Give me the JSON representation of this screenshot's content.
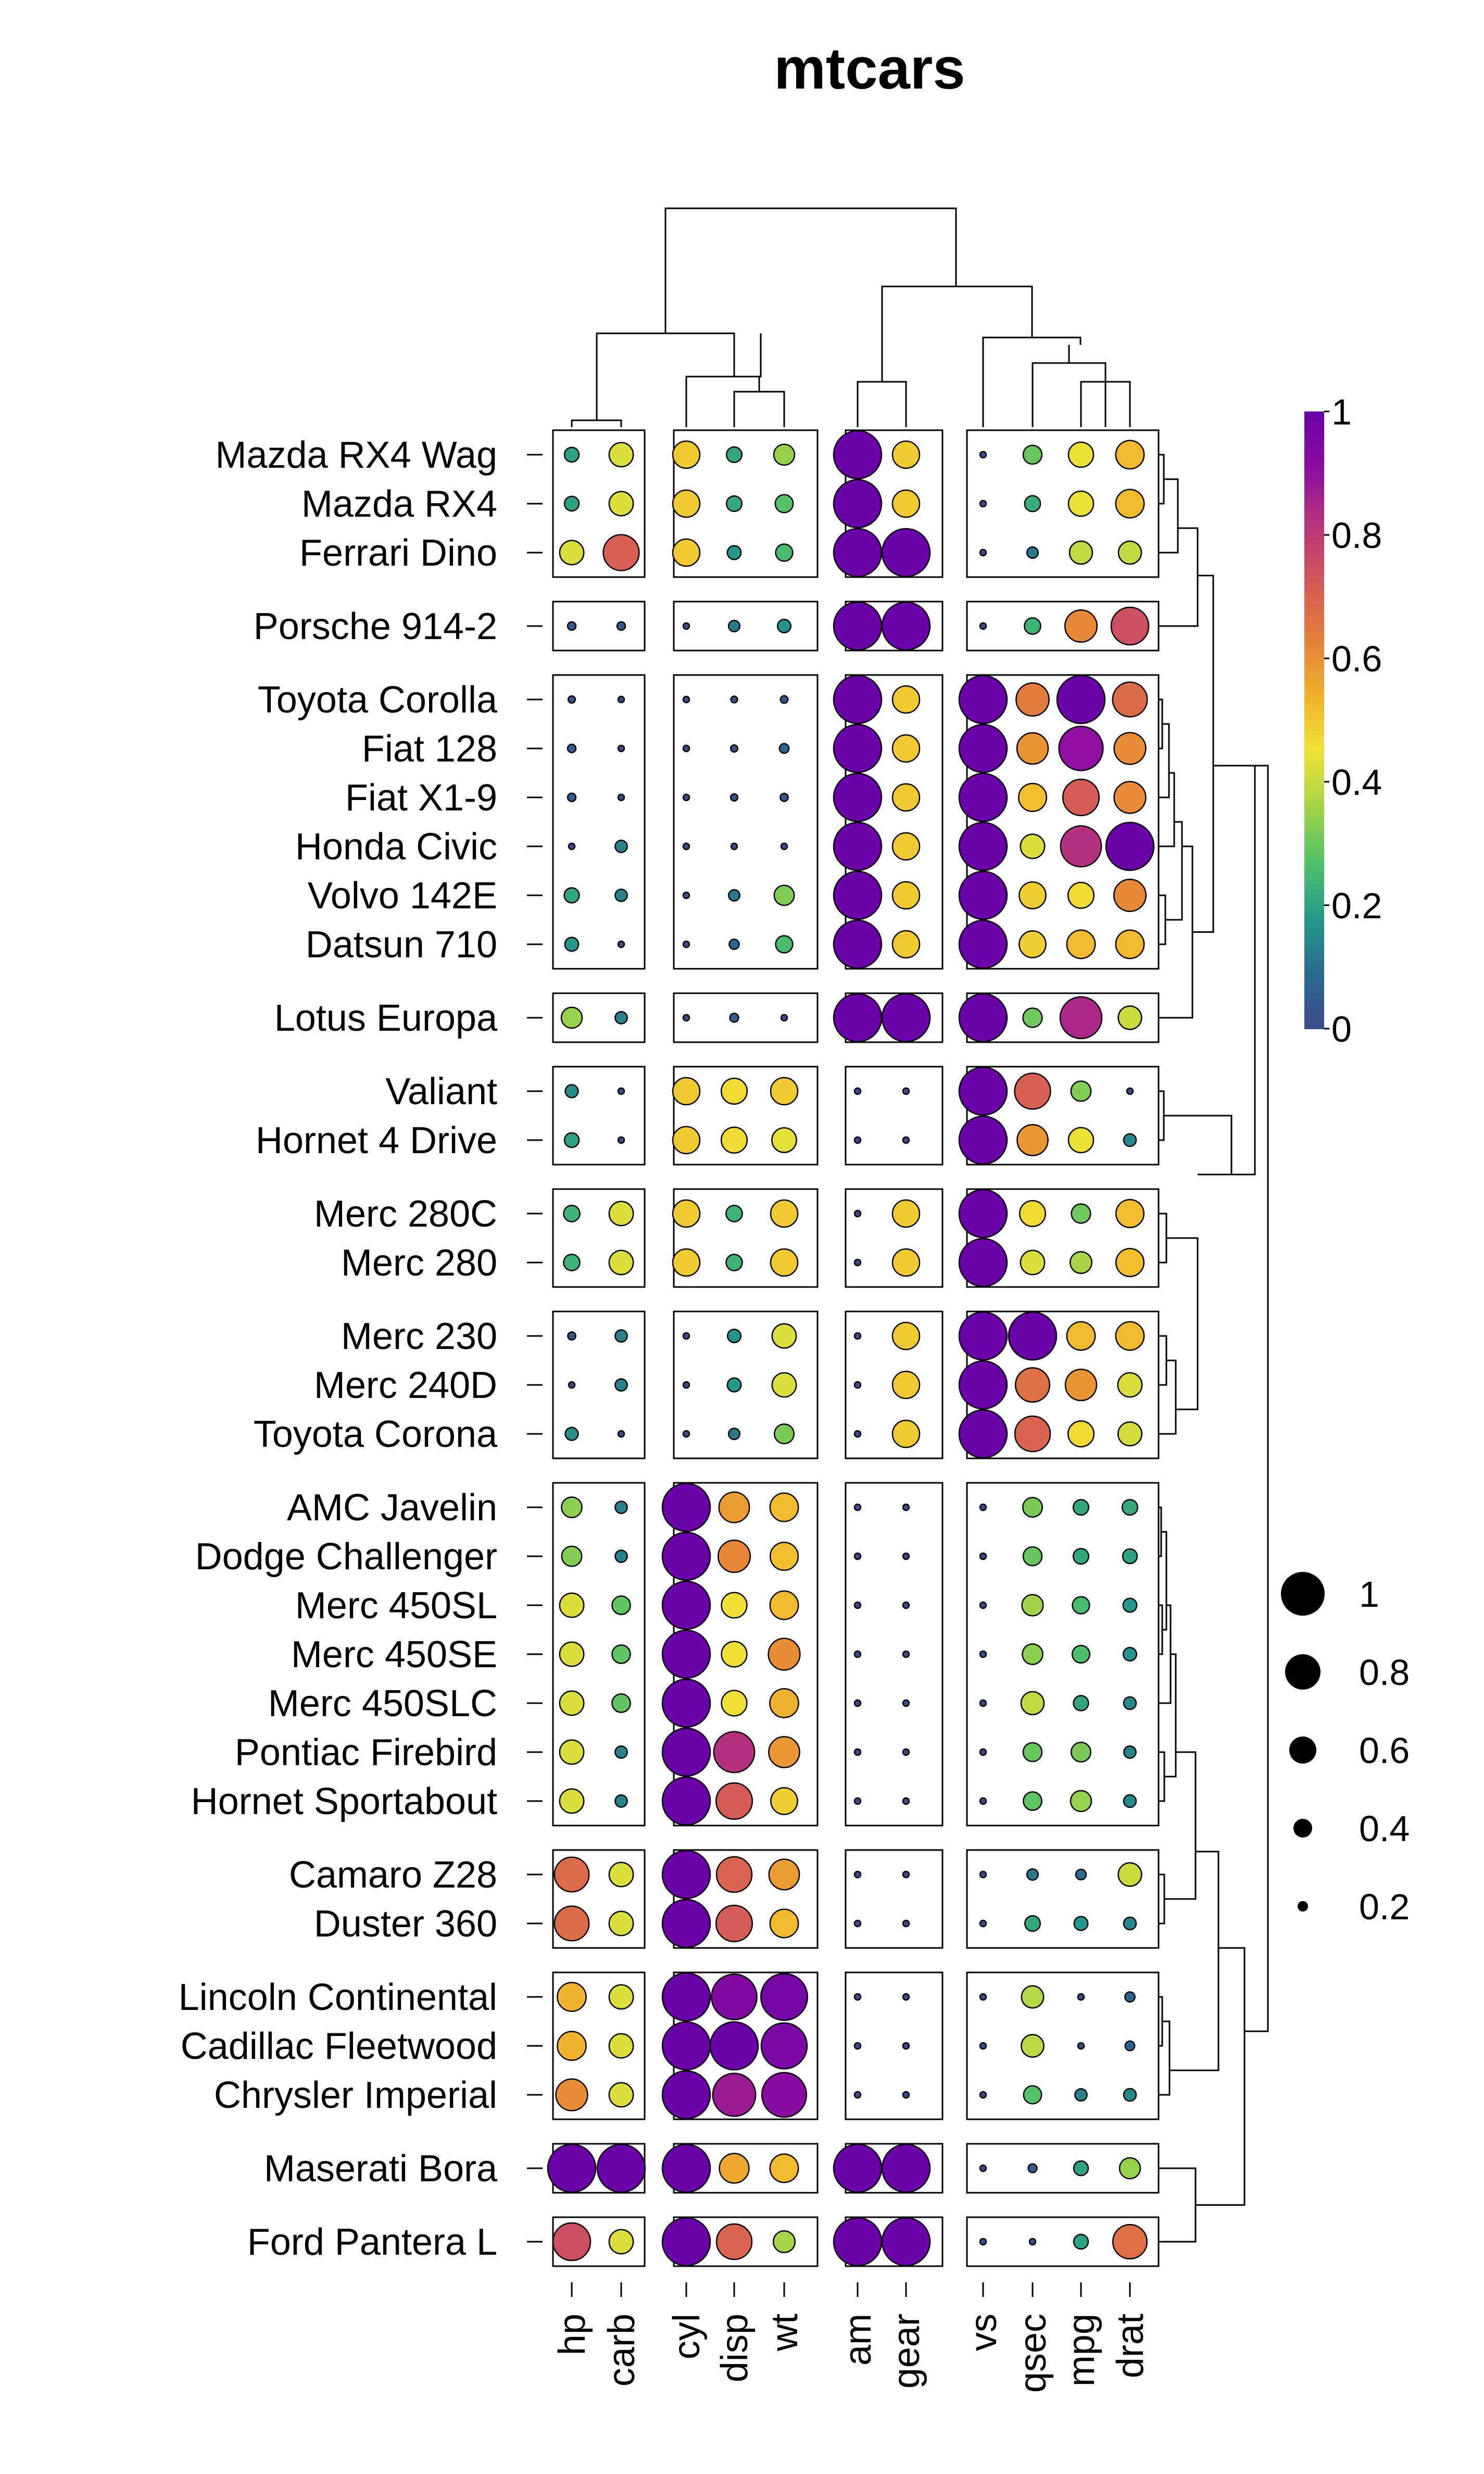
{
  "chart_data": {
    "type": "heatmap",
    "title": "mtcars",
    "columns": [
      "hp",
      "carb",
      "cyl",
      "disp",
      "wt",
      "am",
      "gear",
      "vs",
      "qsec",
      "mpg",
      "drat"
    ],
    "column_groups": [
      [
        0,
        1
      ],
      [
        2,
        3,
        4
      ],
      [
        5,
        6
      ],
      [
        7,
        8,
        9,
        10
      ]
    ],
    "rows": [
      "Mazda RX4 Wag",
      "Mazda RX4",
      "Ferrari Dino",
      "Porsche 914-2",
      "Toyota Corolla",
      "Fiat 128",
      "Fiat X1-9",
      "Honda Civic",
      "Volvo 142E",
      "Datsun 710",
      "Lotus Europa",
      "Valiant",
      "Hornet 4 Drive",
      "Merc 280C",
      "Merc 280",
      "Merc 230",
      "Merc 240D",
      "Toyota Corona",
      "AMC Javelin",
      "Dodge Challenger",
      "Merc 450SL",
      "Merc 450SE",
      "Merc 450SLC",
      "Pontiac Firebird",
      "Hornet Sportabout",
      "Camaro Z28",
      "Duster 360",
      "Lincoln Continental",
      "Cadillac Fleetwood",
      "Chrysler Imperial",
      "Maserati Bora",
      "Ford Pantera L"
    ],
    "row_groups": [
      [
        0,
        1,
        2
      ],
      [
        3
      ],
      [
        4,
        5,
        6,
        7,
        8,
        9
      ],
      [
        10
      ],
      [
        11,
        12
      ],
      [
        13,
        14
      ],
      [
        15,
        16,
        17
      ],
      [
        18,
        19,
        20,
        21,
        22,
        23,
        24
      ],
      [
        25,
        26
      ],
      [
        27,
        28,
        29
      ],
      [
        30
      ],
      [
        31
      ]
    ],
    "values": [
      [
        0.2,
        0.43,
        0.5,
        0.22,
        0.35,
        1.0,
        0.5,
        0.0,
        0.3,
        0.45,
        0.53
      ],
      [
        0.2,
        0.43,
        0.5,
        0.22,
        0.28,
        1.0,
        0.5,
        0.0,
        0.23,
        0.45,
        0.53
      ],
      [
        0.43,
        0.71,
        0.5,
        0.18,
        0.26,
        1.0,
        1.0,
        0.0,
        0.12,
        0.4,
        0.4
      ],
      [
        0.05,
        0.05,
        0.0,
        0.12,
        0.17,
        1.0,
        1.0,
        0.0,
        0.24,
        0.62,
        0.75
      ],
      [
        0.02,
        0.0,
        0.0,
        0.01,
        0.03,
        1.0,
        0.5,
        1.0,
        0.64,
        1.0,
        0.68
      ],
      [
        0.05,
        0.0,
        0.0,
        0.02,
        0.08,
        1.0,
        0.5,
        1.0,
        0.6,
        0.91,
        0.61
      ],
      [
        0.05,
        0.0,
        0.0,
        0.02,
        0.04,
        1.0,
        0.5,
        1.0,
        0.52,
        0.72,
        0.61
      ],
      [
        0.0,
        0.14,
        0.0,
        0.0,
        0.0,
        1.0,
        0.5,
        1.0,
        0.43,
        0.83,
        1.0
      ],
      [
        0.21,
        0.14,
        0.0,
        0.12,
        0.33,
        1.0,
        0.5,
        1.0,
        0.49,
        0.47,
        0.62
      ],
      [
        0.18,
        0.0,
        0.0,
        0.09,
        0.26,
        1.0,
        0.5,
        1.0,
        0.49,
        0.53,
        0.53
      ],
      [
        0.35,
        0.14,
        0.0,
        0.06,
        0.0,
        1.0,
        1.0,
        1.0,
        0.31,
        0.85,
        0.41
      ],
      [
        0.16,
        0.0,
        0.5,
        0.47,
        0.5,
        0.0,
        0.0,
        1.0,
        0.71,
        0.33,
        0.0
      ],
      [
        0.2,
        0.0,
        0.5,
        0.47,
        0.44,
        0.0,
        0.0,
        1.0,
        0.59,
        0.45,
        0.15
      ],
      [
        0.24,
        0.43,
        0.5,
        0.24,
        0.5,
        0.0,
        0.5,
        1.0,
        0.47,
        0.31,
        0.52
      ],
      [
        0.24,
        0.43,
        0.5,
        0.24,
        0.5,
        0.0,
        0.5,
        1.0,
        0.43,
        0.37,
        0.52
      ],
      [
        0.04,
        0.14,
        0.0,
        0.17,
        0.43,
        0.0,
        0.5,
        1.0,
        1.0,
        0.53,
        0.53
      ],
      [
        0.0,
        0.14,
        0.0,
        0.18,
        0.43,
        0.0,
        0.5,
        1.0,
        0.67,
        0.6,
        0.43
      ],
      [
        0.16,
        0.0,
        0.0,
        0.12,
        0.32,
        0.0,
        0.5,
        1.0,
        0.7,
        0.47,
        0.42
      ],
      [
        0.34,
        0.14,
        1.0,
        0.58,
        0.53,
        0.0,
        0.0,
        0.0,
        0.32,
        0.22,
        0.22
      ],
      [
        0.33,
        0.14,
        1.0,
        0.62,
        0.52,
        0.0,
        0.0,
        0.0,
        0.3,
        0.22,
        0.2
      ],
      [
        0.43,
        0.29,
        1.0,
        0.46,
        0.53,
        0.0,
        0.0,
        0.0,
        0.36,
        0.26,
        0.18
      ],
      [
        0.43,
        0.29,
        1.0,
        0.46,
        0.61,
        0.0,
        0.0,
        0.0,
        0.34,
        0.27,
        0.17
      ],
      [
        0.43,
        0.29,
        1.0,
        0.46,
        0.54,
        0.0,
        0.0,
        0.0,
        0.4,
        0.21,
        0.15
      ],
      [
        0.43,
        0.14,
        1.0,
        0.83,
        0.59,
        0.0,
        0.0,
        0.0,
        0.3,
        0.32,
        0.14
      ],
      [
        0.43,
        0.14,
        1.0,
        0.72,
        0.49,
        0.0,
        0.0,
        0.0,
        0.29,
        0.35,
        0.15
      ],
      [
        0.68,
        0.43,
        1.0,
        0.7,
        0.58,
        0.0,
        0.0,
        0.0,
        0.12,
        0.1,
        0.41
      ],
      [
        0.68,
        0.43,
        1.0,
        0.72,
        0.53,
        0.0,
        0.0,
        0.0,
        0.22,
        0.18,
        0.15
      ],
      [
        0.54,
        0.43,
        1.0,
        0.94,
        0.97,
        0.0,
        0.0,
        0.0,
        0.38,
        0.0,
        0.09
      ],
      [
        0.54,
        0.43,
        1.0,
        1.0,
        0.95,
        0.0,
        0.0,
        0.0,
        0.39,
        0.0,
        0.08
      ],
      [
        0.61,
        0.43,
        1.0,
        0.88,
        0.92,
        0.0,
        0.0,
        0.0,
        0.28,
        0.14,
        0.15
      ],
      [
        1.0,
        1.0,
        1.0,
        0.56,
        0.53,
        1.0,
        1.0,
        0.0,
        0.06,
        0.2,
        0.35
      ],
      [
        0.75,
        0.43,
        1.0,
        0.7,
        0.37,
        1.0,
        1.0,
        0.0,
        0.0,
        0.2,
        0.67
      ]
    ],
    "colorbar": {
      "min": 0,
      "max": 1,
      "tick_labels": [
        "0",
        "0.2",
        "0.4",
        "0.6",
        "0.8",
        "1"
      ],
      "palette": "plasma"
    },
    "size_legend": {
      "values": [
        1,
        0.8,
        0.6,
        0.4,
        0.2
      ],
      "labels": [
        "1",
        "0.8",
        "0.6",
        "0.4",
        "0.2"
      ]
    },
    "colors": {
      "stops": [
        "#6a00a8",
        "#8e0fa0",
        "#b7367a",
        "#d45859",
        "#e37f3a",
        "#f0b02c",
        "#f0e336",
        "#a3d447",
        "#4fc06a",
        "#23998b",
        "#2b6890",
        "#3c4a8a"
      ]
    }
  }
}
